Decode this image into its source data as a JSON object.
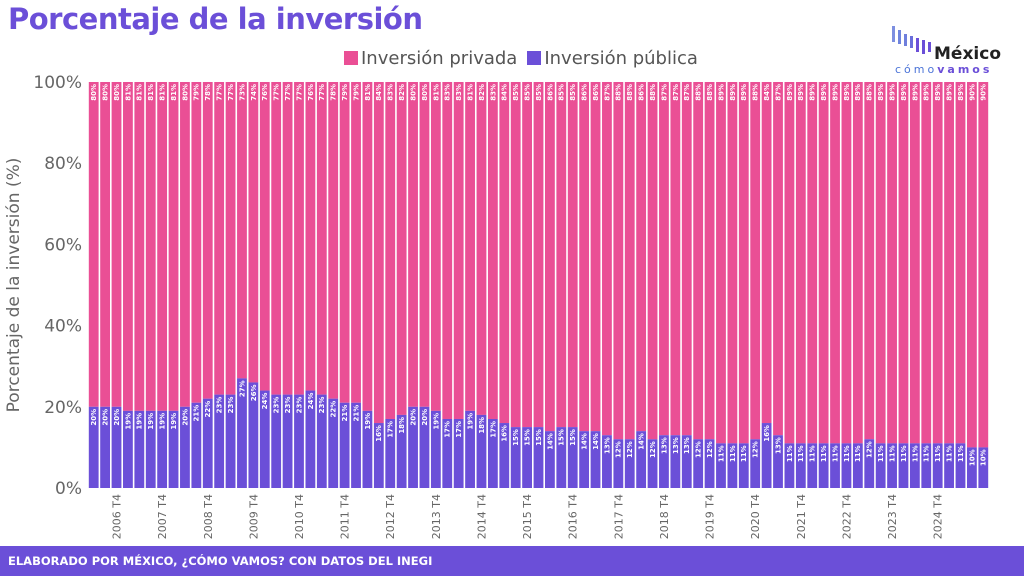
{
  "title": "Porcentaje de la inversión",
  "footer": "ELABORADO POR MÉXICO, ¿CÓMO VAMOS? CON DATOS DEL INEGI",
  "logo": {
    "word": "México",
    "sub_a": "cómo",
    "sub_b": "vamos"
  },
  "colors": {
    "private": "#ea4f95",
    "public": "#6b4fd8",
    "title": "#6b4fd8"
  },
  "chart_data": {
    "type": "bar",
    "stacked": true,
    "ylabel": "Porcentaje de la inversión (%)",
    "ylim": [
      0,
      100
    ],
    "yticks": [
      "0%",
      "20%",
      "40%",
      "60%",
      "80%",
      "100%"
    ],
    "legend_position": "top",
    "x_tick_labels": [
      "2006 T4",
      "2007 T4",
      "2008 T4",
      "2009 T4",
      "2010 T4",
      "2011 T4",
      "2012 T4",
      "2013 T4",
      "2014 T4",
      "2015 T4",
      "2016 T4",
      "2017 T4",
      "2018 T4",
      "2019 T4",
      "2020 T4",
      "2021 T4",
      "2022 T4",
      "2023 T4",
      "2024 T4"
    ],
    "series": [
      {
        "name": "Inversión privada",
        "color": "#ea4f95",
        "values": [
          80,
          80,
          80,
          81,
          81,
          81,
          81,
          81,
          80,
          79,
          78,
          77,
          77,
          73,
          74,
          76,
          77,
          77,
          77,
          76,
          77,
          78,
          79,
          79,
          81,
          84,
          83,
          82,
          80,
          80,
          81,
          83,
          83,
          81,
          82,
          83,
          84,
          85,
          85,
          85,
          86,
          85,
          85,
          86,
          86,
          87,
          88,
          88,
          86,
          88,
          87,
          87,
          87,
          88,
          88,
          89,
          89,
          89,
          88,
          84,
          87,
          89,
          89,
          89,
          89,
          89,
          89,
          89,
          88,
          89,
          89,
          89,
          89,
          89,
          89,
          89,
          89,
          90,
          90
        ]
      },
      {
        "name": "Inversión pública",
        "color": "#6b4fd8",
        "values": [
          20,
          20,
          20,
          19,
          19,
          19,
          19,
          19,
          20,
          21,
          22,
          23,
          23,
          27,
          26,
          24,
          23,
          23,
          23,
          24,
          23,
          22,
          21,
          21,
          19,
          16,
          17,
          18,
          20,
          20,
          19,
          17,
          17,
          19,
          18,
          17,
          16,
          15,
          15,
          15,
          14,
          15,
          15,
          14,
          14,
          13,
          12,
          12,
          14,
          12,
          13,
          13,
          13,
          12,
          12,
          11,
          11,
          11,
          12,
          16,
          13,
          11,
          11,
          11,
          11,
          11,
          11,
          11,
          12,
          11,
          11,
          11,
          11,
          11,
          11,
          11,
          11,
          10,
          10
        ]
      }
    ]
  }
}
